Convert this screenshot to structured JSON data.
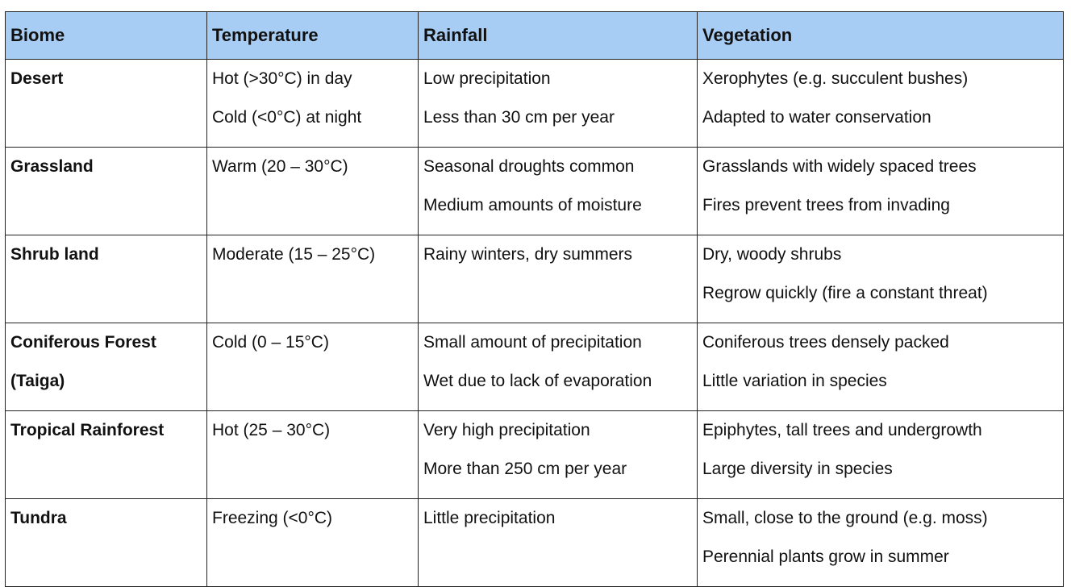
{
  "table": {
    "headers": [
      "Biome",
      "Temperature",
      "Rainfall",
      "Vegetation"
    ],
    "rows": [
      {
        "biome": [
          "Desert"
        ],
        "temperature": [
          "Hot (>30°C) in day",
          "Cold (<0°C) at night"
        ],
        "rainfall": [
          "Low precipitation",
          "Less than 30 cm per year"
        ],
        "vegetation": [
          "Xerophytes (e.g. succulent bushes)",
          "Adapted to water conservation"
        ]
      },
      {
        "biome": [
          "Grassland"
        ],
        "temperature": [
          "Warm (20 – 30°C)"
        ],
        "rainfall": [
          "Seasonal droughts common",
          "Medium amounts of moisture"
        ],
        "vegetation": [
          "Grasslands with widely spaced trees",
          "Fires prevent trees from invading"
        ]
      },
      {
        "biome": [
          "Shrub land"
        ],
        "temperature": [
          "Moderate (15 – 25°C)"
        ],
        "rainfall": [
          "Rainy winters, dry summers"
        ],
        "vegetation": [
          "Dry, woody shrubs",
          "Regrow quickly (fire a constant threat)"
        ]
      },
      {
        "biome": [
          "Coniferous Forest",
          "(Taiga)"
        ],
        "temperature": [
          "Cold (0 – 15°C)"
        ],
        "rainfall": [
          "Small amount of precipitation",
          "Wet due to lack of evaporation"
        ],
        "vegetation": [
          "Coniferous trees densely packed",
          "Little variation in species"
        ]
      },
      {
        "biome": [
          "Tropical Rainforest"
        ],
        "temperature": [
          "Hot (25 – 30°C)"
        ],
        "rainfall": [
          "Very high precipitation",
          "More than 250 cm per year"
        ],
        "vegetation": [
          "Epiphytes, tall trees and undergrowth",
          "Large diversity in species"
        ]
      },
      {
        "biome": [
          "Tundra"
        ],
        "temperature": [
          "Freezing (<0°C)"
        ],
        "rainfall": [
          "Little precipitation"
        ],
        "vegetation": [
          "Small, close to the ground (e.g. moss)",
          "Perennial plants grow in summer"
        ]
      }
    ]
  }
}
